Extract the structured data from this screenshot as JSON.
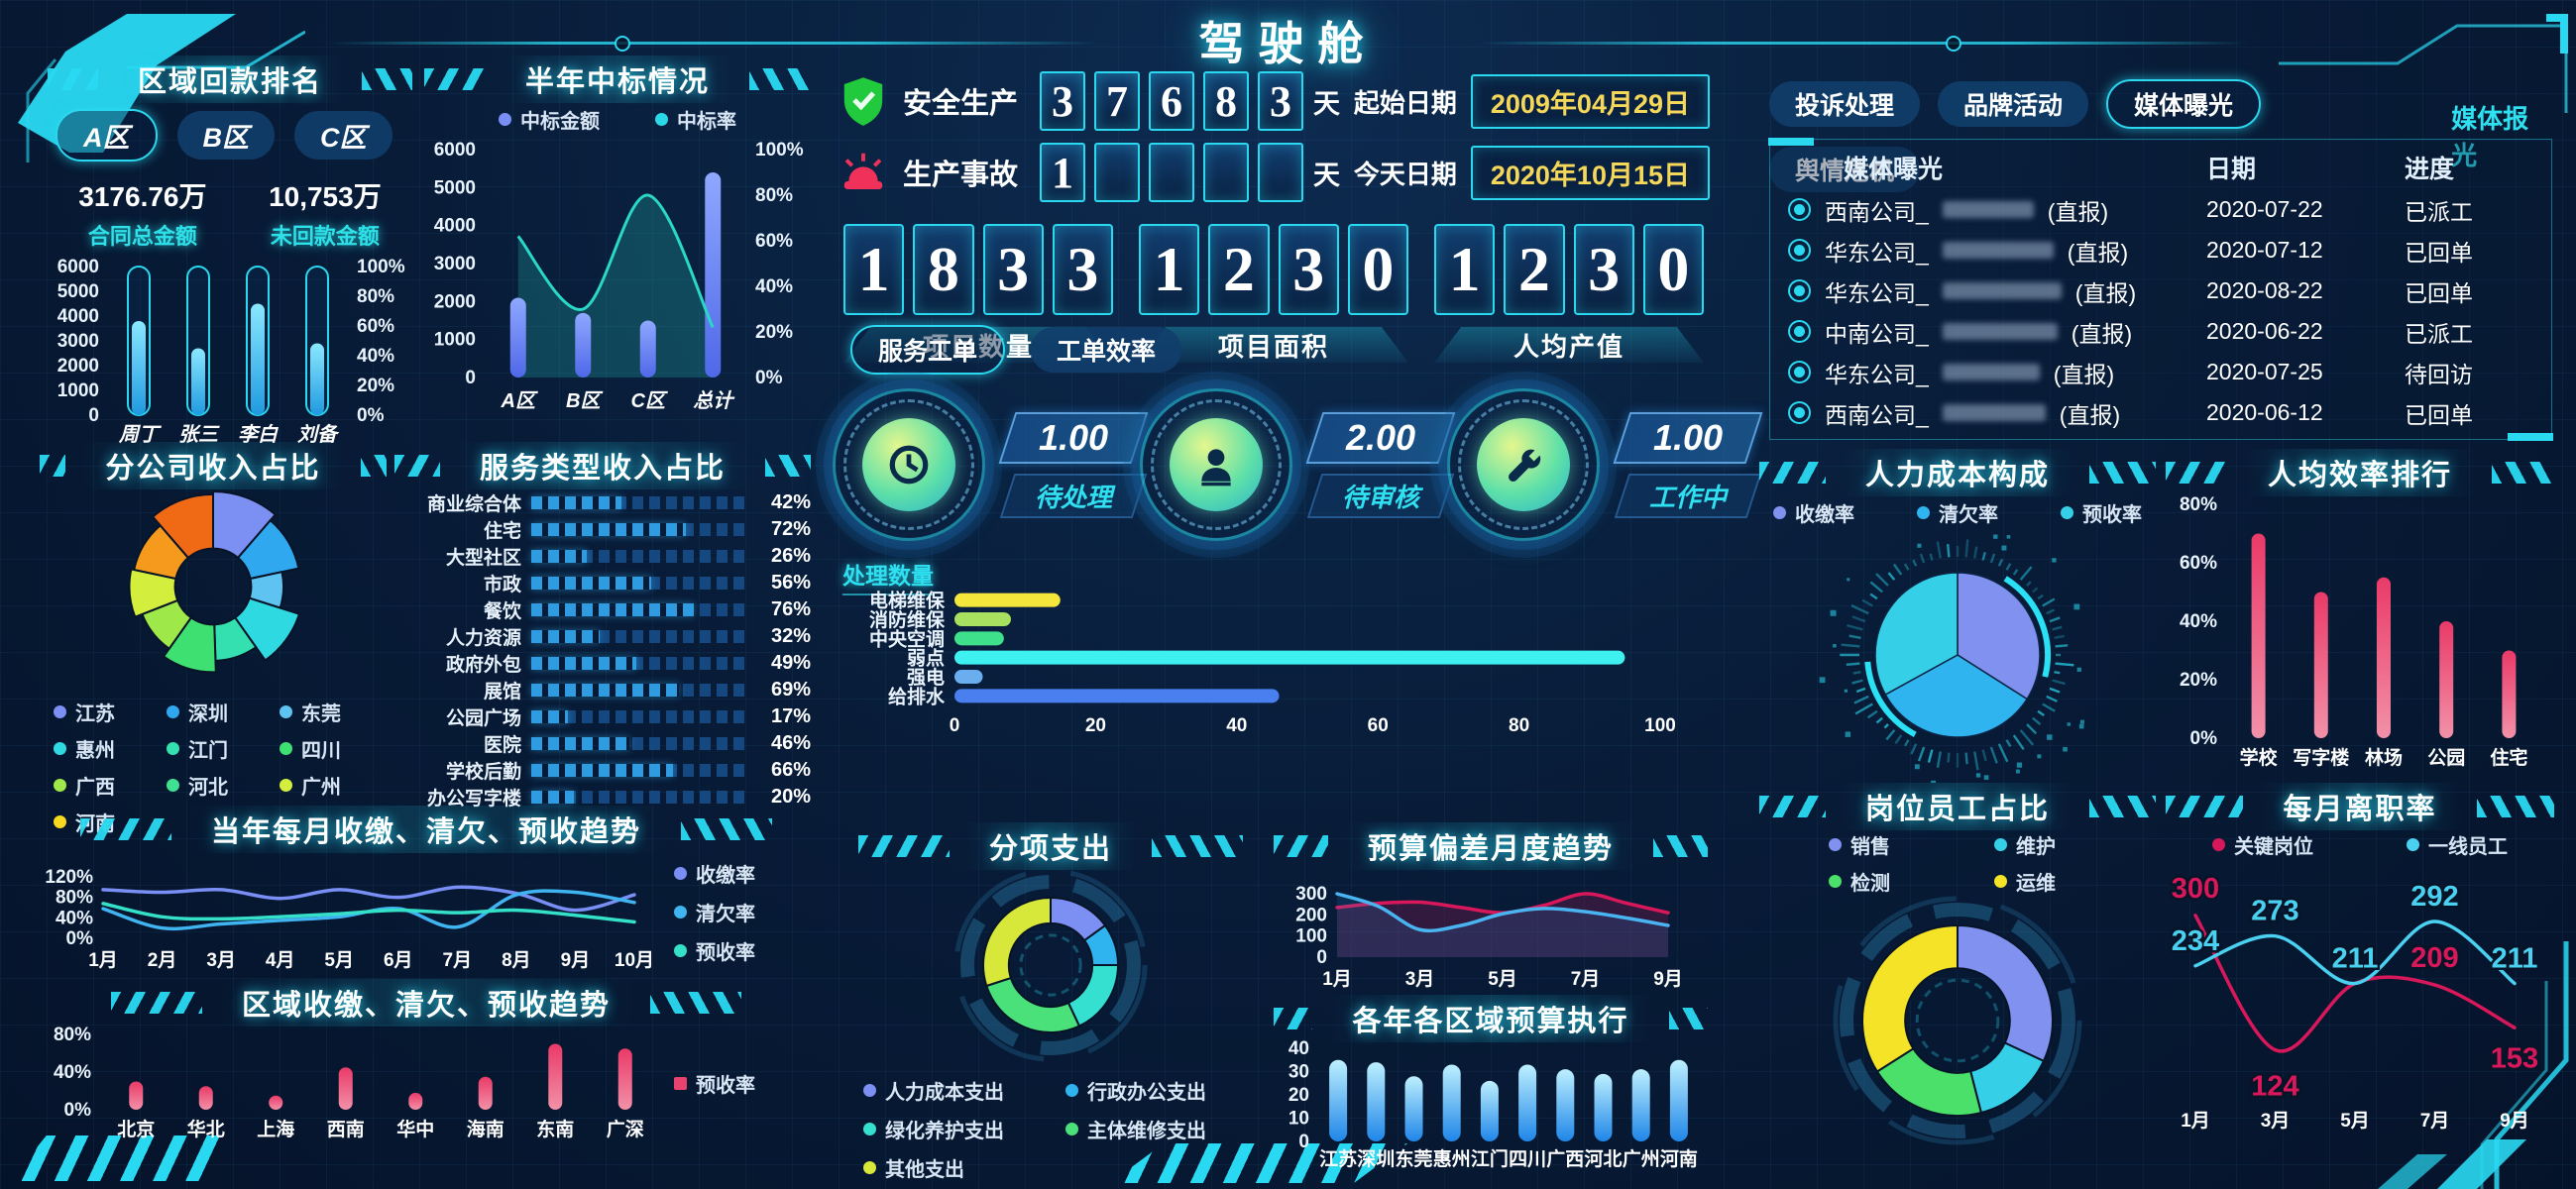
{
  "app_title": "驾驶舱",
  "accent": "#29d9f2",
  "left": {
    "payment_rank": {
      "title": "区域回款排名",
      "tabs": [
        {
          "label": "A区",
          "active": true
        },
        {
          "label": "B区",
          "active": false
        },
        {
          "label": "C区",
          "active": false
        }
      ],
      "stats": [
        {
          "value": "3176.76万",
          "label": "合同总金额"
        },
        {
          "value": "10,753万",
          "label": "未回款金额"
        }
      ],
      "chart": {
        "type": "capsule",
        "categories": [
          "周丁",
          "张三",
          "李白",
          "刘备"
        ],
        "values": [
          3800,
          2700,
          4500,
          2900
        ],
        "ymax": 6000,
        "yticks": [
          "6000",
          "5000",
          "4000",
          "3000",
          "2000",
          "1000",
          "0"
        ],
        "y2ticks": [
          "100%",
          "80%",
          "60%",
          "40%",
          "20%",
          "0%"
        ],
        "track": true,
        "track_color": "#2ad8f0",
        "bar_top": "#8ae8ff",
        "bar_bottom": "#1f9ae0"
      }
    },
    "bid_status": {
      "title": "半年中标情况",
      "legend": [
        {
          "label": "中标金额",
          "color": "#7a8ff5"
        },
        {
          "label": "中标率",
          "color": "#2ad8e8"
        }
      ],
      "chart": {
        "type": "combo",
        "categories": [
          "A区",
          "B区",
          "C区",
          "总计"
        ],
        "bars": [
          2100,
          1700,
          1500,
          5400
        ],
        "line": [
          62,
          30,
          80,
          22
        ],
        "ymax": 6000,
        "yticks": [
          "6000",
          "5000",
          "4000",
          "3000",
          "2000",
          "1000",
          "0"
        ],
        "y2max": 100,
        "y2ticks": [
          "100%",
          "80%",
          "60%",
          "40%",
          "20%",
          "0%"
        ],
        "bar_top": "#8fa8ff",
        "bar_bottom": "#4f68e8",
        "line_color": "#2ad8c8",
        "area_color": "rgba(42,216,200,.22)"
      }
    },
    "branch_revenue": {
      "title": "分公司收入占比",
      "legend": [
        {
          "label": "江苏",
          "color": "#7c8ff2"
        },
        {
          "label": "深圳",
          "color": "#2fa8f0"
        },
        {
          "label": "东莞",
          "color": "#5fc3f2"
        },
        {
          "label": "惠州",
          "color": "#2fd9e2"
        },
        {
          "label": "江门",
          "color": "#35e0b0"
        },
        {
          "label": "四川",
          "color": "#3fe072"
        },
        {
          "label": "广西",
          "color": "#9fe84a"
        },
        {
          "label": "河北",
          "color": "#3fe092"
        },
        {
          "label": "广州",
          "color": "#d4ee3e"
        },
        {
          "label": "河南",
          "color": "#f5d920"
        }
      ],
      "chart": {
        "type": "rose",
        "values": [
          11,
          10,
          8,
          10,
          9,
          10,
          9,
          9,
          10,
          11
        ],
        "radii": [
          1,
          0.92,
          0.74,
          0.95,
          0.78,
          0.9,
          0.8,
          0.88,
          0.85,
          0.97
        ],
        "inner": 0.4,
        "colors": [
          "#7c8ff2",
          "#2fa8f0",
          "#5fc3f2",
          "#2fd9e2",
          "#35e0b0",
          "#3fe072",
          "#9fe84a",
          "#d4ee3e",
          "#f59a1c",
          "#f06a16"
        ]
      }
    },
    "service_revenue": {
      "title": "服务类型收入占比",
      "rows": [
        {
          "label": "商业综合体",
          "value": 42
        },
        {
          "label": "住宅",
          "value": 72
        },
        {
          "label": "大型社区",
          "value": 26
        },
        {
          "label": "市政",
          "value": 56
        },
        {
          "label": "餐饮",
          "value": 76
        },
        {
          "label": "人力资源",
          "value": 32
        },
        {
          "label": "政府外包",
          "value": 49
        },
        {
          "label": "展馆",
          "value": 69
        },
        {
          "label": "公园广场",
          "value": 17
        },
        {
          "label": "医院",
          "value": 46
        },
        {
          "label": "学校后勤",
          "value": 66
        },
        {
          "label": "办公写字楼",
          "value": 20
        }
      ]
    },
    "monthly_trend": {
      "title": "当年每月收缴、清欠、预收趋势",
      "legend": [
        {
          "label": "收缴率",
          "color": "#7a8ff5"
        },
        {
          "label": "清欠率",
          "color": "#3fb4f0"
        },
        {
          "label": "预收率",
          "color": "#35e0c8"
        }
      ],
      "chart": {
        "type": "lines",
        "x_labels": [
          "1月",
          "2月",
          "3月",
          "4月",
          "5月",
          "6月",
          "7月",
          "8月",
          "9月",
          "10月"
        ],
        "ymin": 0,
        "ymax": 120,
        "yticks": [
          "120%",
          "80%",
          "40%",
          "0%"
        ],
        "series": [
          {
            "name": "收缴率",
            "color": "#7a8ff5",
            "values": [
              95,
              90,
              95,
              78,
              95,
              80,
              100,
              88,
              55,
              85
            ]
          },
          {
            "name": "清欠率",
            "color": "#3fb4f0",
            "values": [
              58,
              20,
              28,
              35,
              42,
              58,
              22,
              85,
              90,
              70
            ]
          },
          {
            "name": "预收率",
            "color": "#35e0c8",
            "values": [
              68,
              42,
              38,
              42,
              48,
              55,
              50,
              55,
              45,
              32
            ]
          }
        ]
      }
    },
    "regional_trend": {
      "title": "区域收缴、清欠、预收趋势",
      "legend": [
        {
          "label": "预收率",
          "color": "#e8436f",
          "shape": "square"
        }
      ],
      "chart": {
        "type": "capsule",
        "categories": [
          "北京",
          "华北",
          "上海",
          "西南",
          "华中",
          "海南",
          "东南",
          "广深"
        ],
        "values": [
          30,
          25,
          15,
          45,
          18,
          35,
          70,
          65
        ],
        "ymax": 80,
        "yticks": [
          "80%",
          "40%",
          "0%"
        ],
        "track": false,
        "bar_top": "#ea3a68",
        "bar_bottom": "#f291a8"
      }
    }
  },
  "center": {
    "safety": {
      "label": "安全生产",
      "digits": [
        "3",
        "7",
        "6",
        "8",
        "3"
      ],
      "unit": "天"
    },
    "accident": {
      "label": "生产事故",
      "digits": [
        "1",
        "",
        "",
        "",
        ""
      ],
      "unit": "天"
    },
    "start_date": {
      "label": "起始日期",
      "value": "2009年04月29日"
    },
    "today_date": {
      "label": "今天日期",
      "value": "2020年10月15日"
    },
    "counters": [
      {
        "digits": [
          "1",
          "8",
          "3",
          "3"
        ],
        "label": "项目数量"
      },
      {
        "digits": [
          "1",
          "2",
          "3",
          "0"
        ],
        "label": "项目面积"
      },
      {
        "digits": [
          "1",
          "2",
          "3",
          "0"
        ],
        "label": "人均产值"
      }
    ],
    "tabs": [
      {
        "label": "服务工单",
        "active": true
      },
      {
        "label": "工单效率",
        "active": false
      }
    ],
    "gauges": [
      {
        "icon": "clock-icon",
        "value": "1.00",
        "label": "待处理"
      },
      {
        "icon": "person-icon",
        "value": "2.00",
        "label": "待审核"
      },
      {
        "icon": "wrench-icon",
        "value": "1.00",
        "label": "工作中"
      }
    ],
    "processing": {
      "label": "处理数量",
      "chart": {
        "type": "hbar",
        "labels": [
          "电梯维保",
          "消防维保",
          "中央空调",
          "弱点",
          "强电",
          "给排水"
        ],
        "values": [
          15,
          8,
          7,
          95,
          4,
          46
        ],
        "colors": [
          "#f5e63c",
          "#a8e05f",
          "#3fe08c",
          "#3ff0f0",
          "#6aaef0",
          "#4a7ff0"
        ],
        "xmax": 100,
        "xticks": [
          "0",
          "20",
          "40",
          "60",
          "80",
          "100"
        ]
      }
    },
    "expense": {
      "title": "分项支出",
      "legend": [
        {
          "label": "人力成本支出",
          "color": "#7c8ff2"
        },
        {
          "label": "行政办公支出",
          "color": "#2fb4f0"
        },
        {
          "label": "绿化养护支出",
          "color": "#35e0d0"
        },
        {
          "label": "主体维修支出",
          "color": "#4ae07a"
        },
        {
          "label": "其他支出",
          "color": "#d8e83a"
        }
      ],
      "chart": {
        "type": "donut",
        "values": [
          15,
          10,
          18,
          27,
          30
        ],
        "colors": [
          "#7c8ff2",
          "#2fb4f0",
          "#35e0d0",
          "#4ae07a",
          "#d8e83a"
        ],
        "inner": 0.62,
        "decor": true
      }
    },
    "budget_deviation": {
      "title": "预算偏差月度趋势",
      "chart": {
        "type": "lines",
        "x_labels": [
          "1月",
          "2月",
          "3月",
          "4月",
          "5月",
          "6月",
          "7月",
          "8月",
          "9月"
        ],
        "xticks": [
          "1月",
          "3月",
          "5月",
          "7月",
          "9月"
        ],
        "ymin": 0,
        "ymax": 300,
        "yticks": [
          "300",
          "200",
          "100",
          "0"
        ],
        "series": [
          {
            "name": "偏差",
            "color": "#d8185a",
            "values": [
              235,
              255,
              260,
              235,
              210,
              245,
              300,
              255,
              210
            ],
            "area": "rgba(216,24,90,.20)"
          },
          {
            "name": "实际",
            "color": "#4ab4f0",
            "values": [
              300,
              240,
              130,
              150,
              205,
              230,
              215,
              185,
              150
            ],
            "area": "rgba(40,140,220,.16)"
          }
        ]
      }
    },
    "budget_execution": {
      "title": "各年各区域预算执行",
      "chart": {
        "type": "vbar",
        "categories": [
          "江苏",
          "深圳",
          "东莞",
          "惠州",
          "江门",
          "四川",
          "广西",
          "河北",
          "广州",
          "河南"
        ],
        "values": [
          35,
          34,
          28,
          33,
          26,
          33,
          31,
          29,
          31,
          35
        ],
        "ymax": 40,
        "yticks": [
          "40",
          "30",
          "20",
          "10",
          "0"
        ],
        "bar_top": "#bdf0ff",
        "bar_bottom": "#1f86e8"
      }
    }
  },
  "right": {
    "tabs": [
      {
        "label": "投诉处理",
        "active": false
      },
      {
        "label": "品牌活动",
        "active": false
      },
      {
        "label": "媒体曝光",
        "active": true
      },
      {
        "label": "舆情危机",
        "active": false
      }
    ],
    "link": "媒体报光",
    "media_table": {
      "headers": [
        "媒体曝光",
        "日期",
        "进度"
      ],
      "rows": [
        {
          "company": "西南公司_",
          "mask_w": 92,
          "suffix": "(直报)",
          "date": "2020-07-22",
          "status": "已派工"
        },
        {
          "company": "华东公司_",
          "mask_w": 112,
          "suffix": "(直报)",
          "date": "2020-07-12",
          "status": "已回单"
        },
        {
          "company": "华东公司_",
          "mask_w": 120,
          "suffix": "(直报)",
          "date": "2020-08-22",
          "status": "已回单"
        },
        {
          "company": "中南公司_",
          "mask_w": 116,
          "suffix": "(直报)",
          "date": "2020-06-22",
          "status": "已派工"
        },
        {
          "company": "华东公司_",
          "mask_w": 98,
          "suffix": "(直报)",
          "date": "2020-07-25",
          "status": "待回访"
        },
        {
          "company": "西南公司_",
          "mask_w": 104,
          "suffix": "(直报)",
          "date": "2020-06-12",
          "status": "已回单"
        }
      ]
    },
    "hr_cost": {
      "title": "人力成本构成",
      "legend": [
        {
          "label": "收缴率",
          "color": "#8091f0"
        },
        {
          "label": "清欠率",
          "color": "#2fb4f0"
        },
        {
          "label": "预收率",
          "color": "#35d0e8"
        }
      ],
      "chart": {
        "type": "pie",
        "values": [
          34,
          33,
          33
        ],
        "colors": [
          "#8091f0",
          "#2fb4f0",
          "#35d0e8"
        ],
        "decor": true
      }
    },
    "efficiency": {
      "title": "人均效率排行",
      "chart": {
        "type": "capsule",
        "categories": [
          "学校",
          "写字楼",
          "林场",
          "公园",
          "住宅"
        ],
        "values": [
          70,
          50,
          55,
          40,
          30
        ],
        "ymax": 80,
        "yticks": [
          "80%",
          "60%",
          "40%",
          "20%",
          "0%"
        ],
        "track": false,
        "bar_top": "#ea3a68",
        "bar_bottom": "#f291a8"
      }
    },
    "position_ratio": {
      "title": "岗位员工占比",
      "legend": [
        {
          "label": "销售",
          "color": "#8091f0"
        },
        {
          "label": "维护",
          "color": "#35d0e8"
        },
        {
          "label": "检测",
          "color": "#4ae06a"
        },
        {
          "label": "运维",
          "color": "#f5e327"
        }
      ],
      "chart": {
        "type": "donut",
        "values": [
          32,
          14,
          20,
          34
        ],
        "colors": [
          "#8091f0",
          "#35d0e8",
          "#4ae06a",
          "#f5e327"
        ],
        "inner": 0.55,
        "decor": true
      }
    },
    "turnover": {
      "title": "每月离职率",
      "legend": [
        {
          "label": "关键岗位",
          "color": "#d8185a"
        },
        {
          "label": "一线员工",
          "color": "#4ad0f0"
        }
      ],
      "chart": {
        "type": "lines",
        "x_labels": [
          "1月",
          "3月",
          "5月",
          "7月",
          "9月"
        ],
        "ymin": 60,
        "ymax": 340,
        "yticks": [],
        "series": [
          {
            "name": "关键岗位",
            "color": "#d8185a",
            "values": [
              300,
              124,
              211,
              209,
              153
            ],
            "labels": [
              "300",
              "124",
              null,
              "209",
              "153"
            ],
            "label_dy": [
              -18,
              46,
              0,
              -18,
              40
            ]
          },
          {
            "name": "一线员工",
            "color": "#4ad0f0",
            "values": [
              234,
              273,
              211,
              292,
              211
            ],
            "labels": [
              "234",
              "273",
              "211",
              "292",
              "211"
            ],
            "label_dy": [
              -16,
              -16,
              -16,
              -16,
              -16
            ]
          }
        ]
      }
    }
  }
}
